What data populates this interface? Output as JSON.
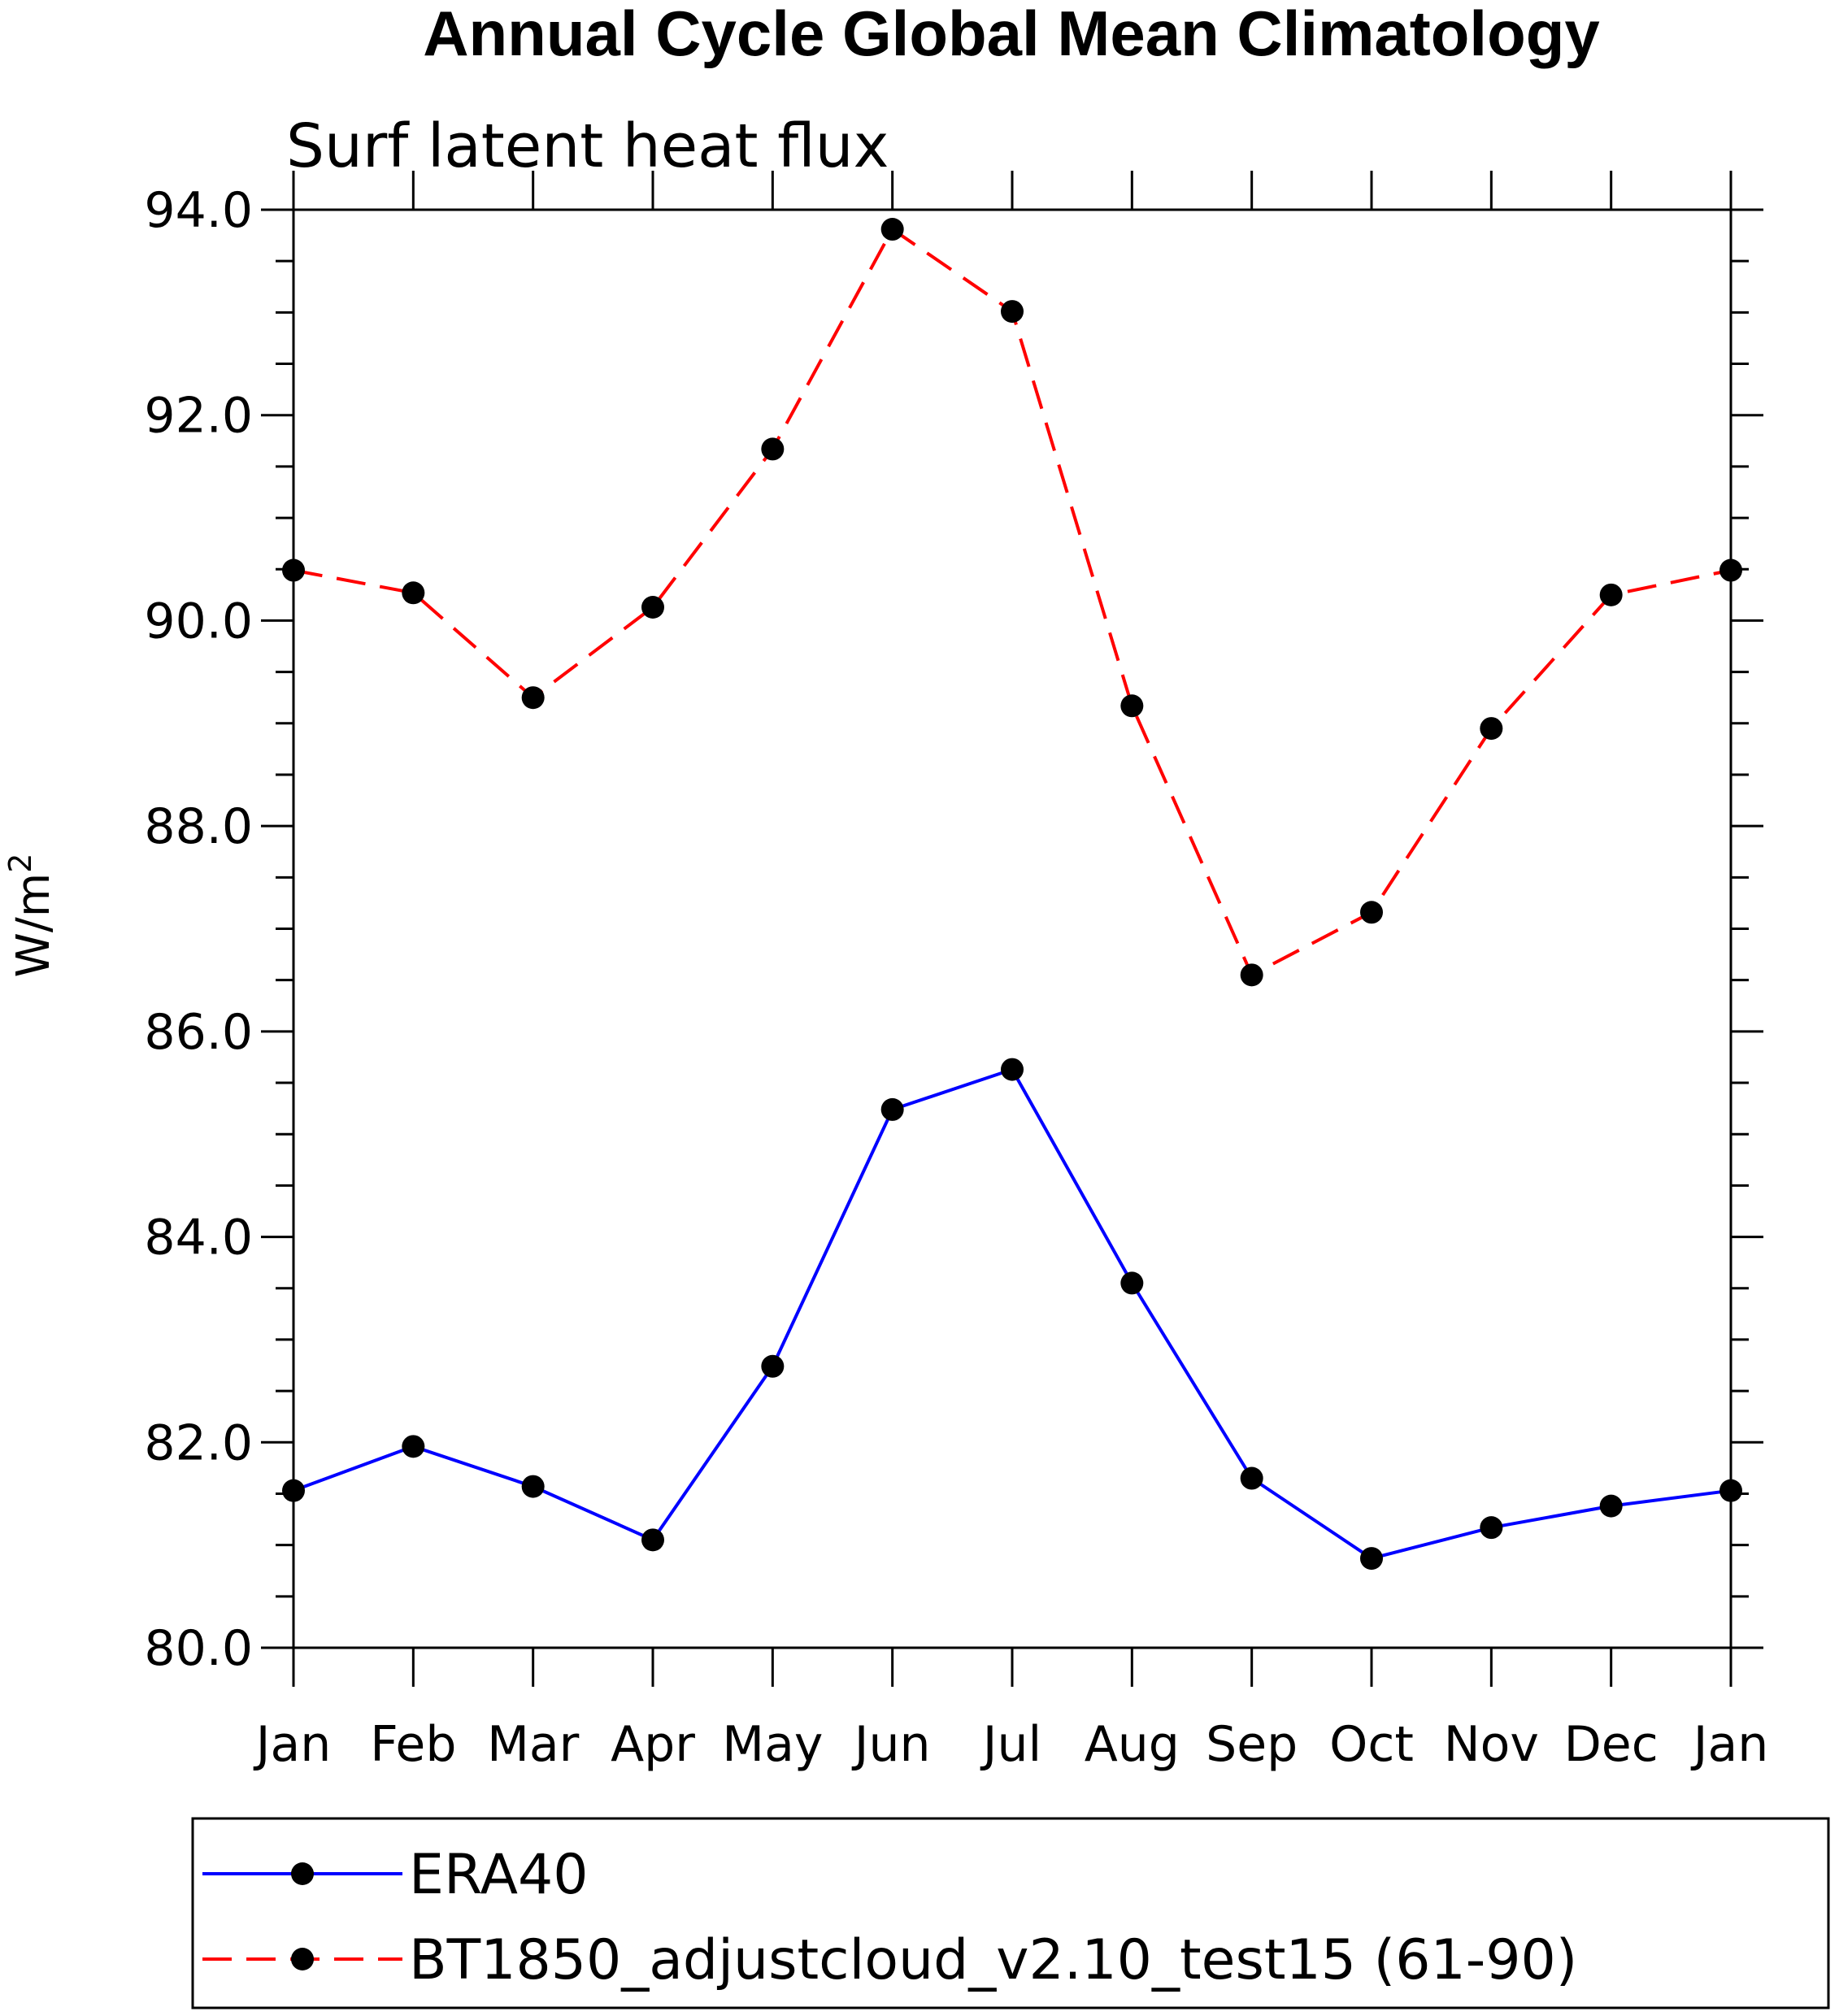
{
  "chart_data": {
    "type": "line",
    "title": "Annual Cycle Global Mean Climatology",
    "subtitle": "Surf latent heat flux",
    "ylabel": "W/m",
    "ylabel_superscript": "2",
    "xlabel": "",
    "categories": [
      "Jan",
      "Feb",
      "Mar",
      "Apr",
      "May",
      "Jun",
      "Jul",
      "Aug",
      "Sep",
      "Oct",
      "Nov",
      "Dec",
      "Jan"
    ],
    "ylim": [
      80.0,
      94.0
    ],
    "yticks": [
      "80.0",
      "82.0",
      "84.0",
      "86.0",
      "88.0",
      "90.0",
      "92.0",
      "94.0"
    ],
    "grid": false,
    "legend_placement": "bottom",
    "series": [
      {
        "name": "ERA40",
        "color": "#0000ff",
        "dash": "solid",
        "marker": "filled-circle",
        "values": [
          81.53,
          81.96,
          81.57,
          81.05,
          82.74,
          85.24,
          85.63,
          83.55,
          81.65,
          80.87,
          81.17,
          81.38,
          81.53
        ]
      },
      {
        "name": "BT1850_adjustcloud_v2.10_test15 (61-90)",
        "color": "#ff0000",
        "dash": "dashed",
        "marker": "filled-circle",
        "values": [
          90.49,
          90.27,
          89.25,
          90.13,
          91.67,
          93.81,
          93.01,
          89.17,
          86.55,
          87.16,
          88.95,
          90.25,
          90.49
        ]
      }
    ]
  }
}
